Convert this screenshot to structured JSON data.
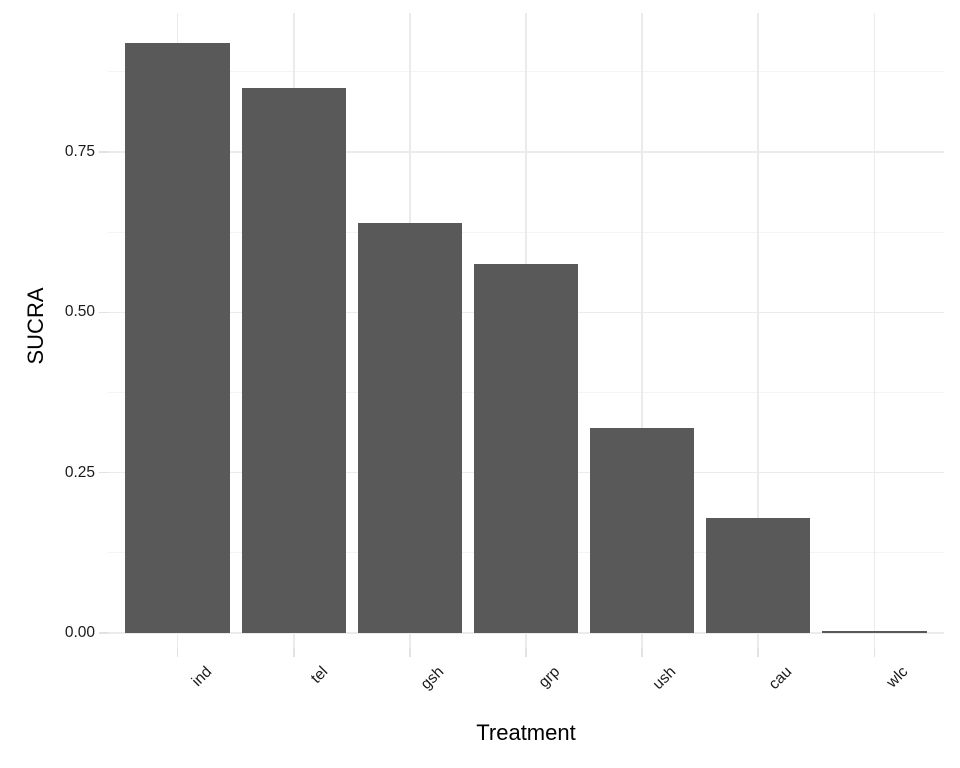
{
  "chart_data": {
    "type": "bar",
    "title": "",
    "xlabel": "Treatment",
    "ylabel": "SUCRA",
    "categories": [
      "ind",
      "tel",
      "gsh",
      "grp",
      "ush",
      "cau",
      "wlc"
    ],
    "values": [
      0.92,
      0.85,
      0.64,
      0.575,
      0.32,
      0.18,
      0.003
    ],
    "ylim": [
      0,
      0.97
    ],
    "yticks": {
      "values": [
        0,
        0.25,
        0.5,
        0.75
      ],
      "labels": [
        "0.00",
        "0.25",
        "0.50",
        "0.75"
      ]
    },
    "yminor": [
      0.125,
      0.375,
      0.625,
      0.875
    ],
    "grid": "horizontal major+minor; vertical major at category centers",
    "legend": "none",
    "colors": {
      "bar_fill": "#595959",
      "background": "#FFFFFF",
      "grid_major": "#EBEBEB",
      "grid_minor": "#F4F4F4",
      "axis_tick": "#E2E2E2",
      "tick_label_text": "#1A1A1A",
      "axis_title_text": "#000000"
    }
  }
}
